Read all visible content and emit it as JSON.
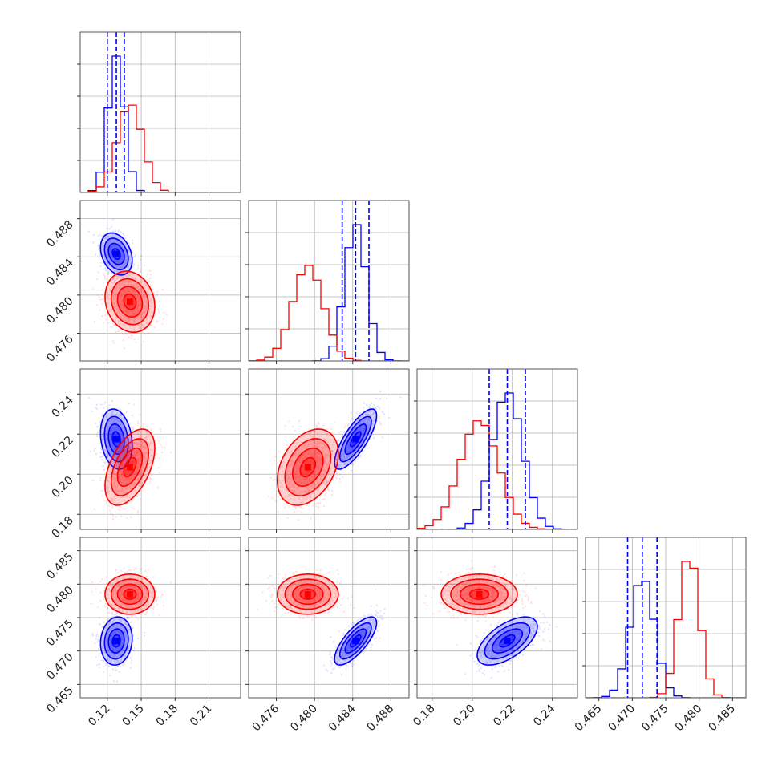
{
  "chart_data": {
    "type": "corner",
    "params": [
      {
        "range": [
          0.096,
          0.238
        ],
        "ticks": [
          0.12,
          0.15,
          0.18,
          0.21
        ],
        "tick_labels": [
          "0.12",
          "0.15",
          "0.18",
          "0.21"
        ]
      },
      {
        "range": [
          0.4731,
          0.4899
        ],
        "ticks": [
          0.476,
          0.48,
          0.484,
          0.488
        ],
        "tick_labels": [
          "0.476",
          "0.480",
          "0.484",
          "0.488"
        ]
      },
      {
        "range": [
          0.1725,
          0.2525
        ],
        "ticks": [
          0.18,
          0.2,
          0.22,
          0.24
        ],
        "tick_labels": [
          "0.18",
          "0.20",
          "0.22",
          "0.24"
        ]
      },
      {
        "range": [
          0.463,
          0.487
        ],
        "ticks": [
          0.465,
          0.47,
          0.475,
          0.48,
          0.485
        ],
        "tick_labels": [
          "0.465",
          "0.470",
          "0.475",
          "0.480",
          "0.485"
        ]
      }
    ],
    "series": [
      {
        "color": "#0000ff",
        "mean": [
          0.128,
          0.4843,
          0.2175,
          0.4715
        ],
        "sd": [
          0.007,
          0.0011,
          0.0075,
          0.0018
        ],
        "quantiles": [
          [
            0.12,
            0.128,
            0.135
          ],
          [
            0.4829,
            0.4843,
            0.4857
          ],
          [
            0.2085,
            0.2175,
            0.2265
          ],
          [
            0.4693,
            0.4715,
            0.4737
          ]
        ],
        "corr": {
          "1-0": -0.3,
          "2-0": -0.2,
          "2-1": 0.78,
          "3-0": 0.1,
          "3-1": 0.75,
          "3-2": 0.6
        }
      },
      {
        "color": "#ff0000",
        "mean": [
          0.14,
          0.4793,
          0.2035,
          0.4785
        ],
        "sd": [
          0.011,
          0.0016,
          0.0095,
          0.0015
        ],
        "quantiles": null,
        "corr": {
          "1-0": -0.15,
          "2-0": 0.5,
          "2-1": 0.35,
          "3-0": 0.0,
          "3-1": 0.0,
          "3-2": 0.0
        }
      }
    ],
    "quantile_line_color": "#0000ff",
    "grid": true
  }
}
